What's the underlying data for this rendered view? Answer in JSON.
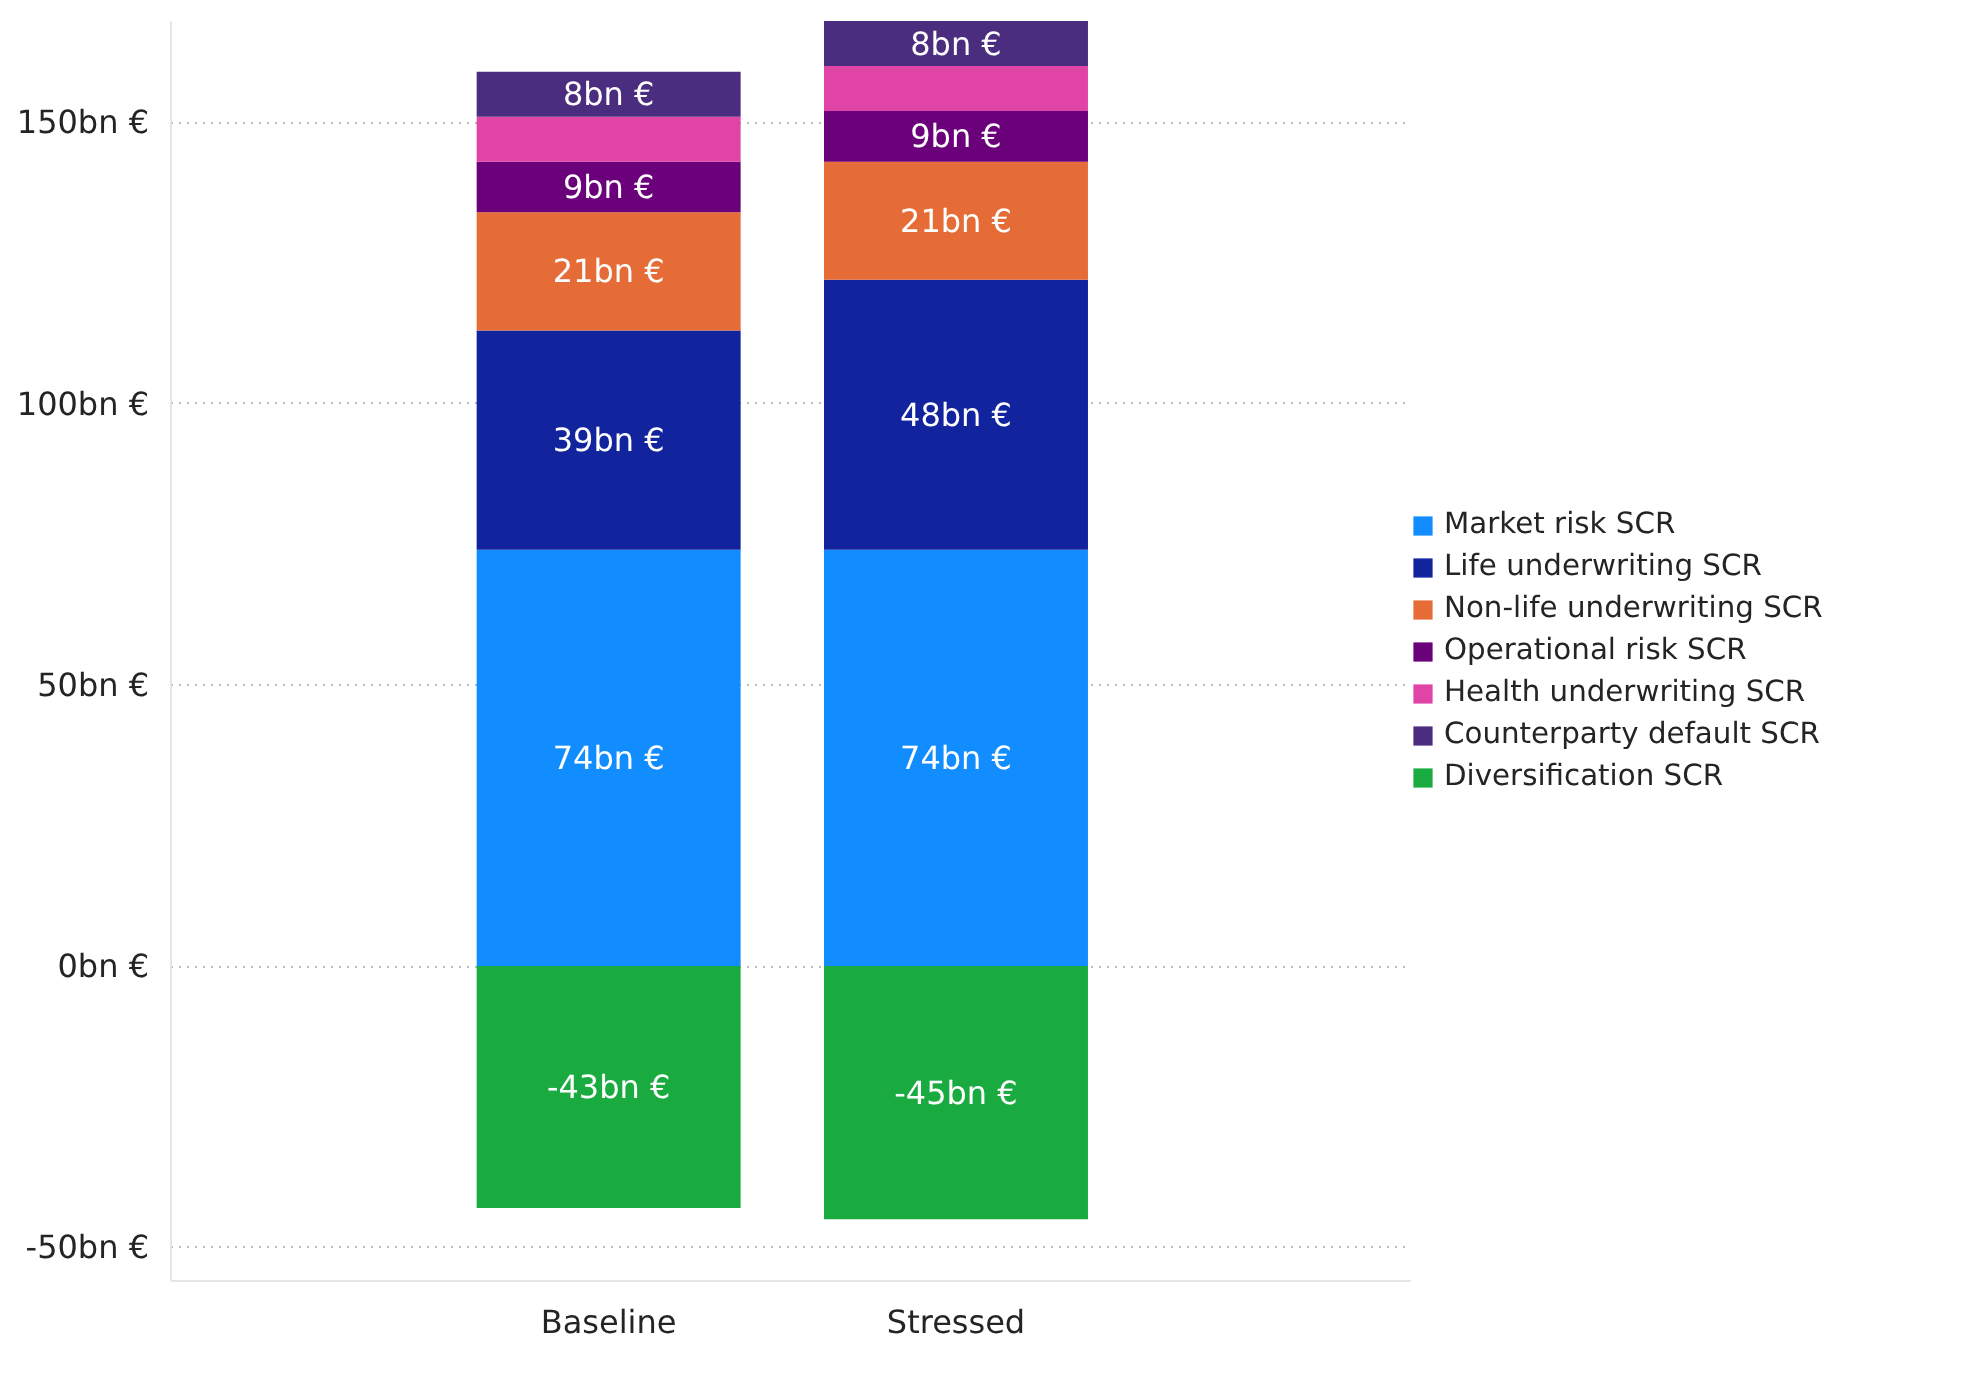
{
  "chart_data": {
    "type": "bar",
    "stacked": true,
    "categories": [
      "Baseline",
      "Stressed"
    ],
    "series": [
      {
        "name": "Market risk SCR",
        "color": "#118dff",
        "values": [
          74,
          74
        ],
        "value_labels": [
          "74bn €",
          "74bn €"
        ]
      },
      {
        "name": "Life underwriting SCR",
        "color": "#12239e",
        "values": [
          39,
          48
        ],
        "value_labels": [
          "39bn €",
          "48bn €"
        ]
      },
      {
        "name": "Non-life underwriting SCR",
        "color": "#e66c37",
        "values": [
          21,
          21
        ],
        "value_labels": [
          "21bn €",
          "21bn €"
        ]
      },
      {
        "name": "Operational risk SCR",
        "color": "#6b007b",
        "values": [
          9,
          9
        ],
        "value_labels": [
          "9bn €",
          "9bn €"
        ]
      },
      {
        "name": "Health underwriting SCR",
        "color": "#e044a7",
        "values": [
          8,
          8
        ],
        "value_labels": [
          null,
          null
        ]
      },
      {
        "name": "Counterparty default SCR",
        "color": "#4b2d7f",
        "values": [
          8,
          8
        ],
        "value_labels": [
          "8bn €",
          "8bn €"
        ]
      },
      {
        "name": "Diversification SCR",
        "color": "#1aab40",
        "values": [
          -43,
          -45
        ],
        "value_labels": [
          "-43bn €",
          "-45bn €"
        ]
      }
    ],
    "ylim": [
      -56,
      168
    ],
    "yticks": [
      {
        "value": -50,
        "label": "-50bn €"
      },
      {
        "value": 0,
        "label": "0bn €"
      },
      {
        "value": 50,
        "label": "50bn €"
      },
      {
        "value": 100,
        "label": "100bn €"
      },
      {
        "value": 150,
        "label": "150bn €"
      }
    ],
    "grid": "y",
    "legend": "right"
  }
}
